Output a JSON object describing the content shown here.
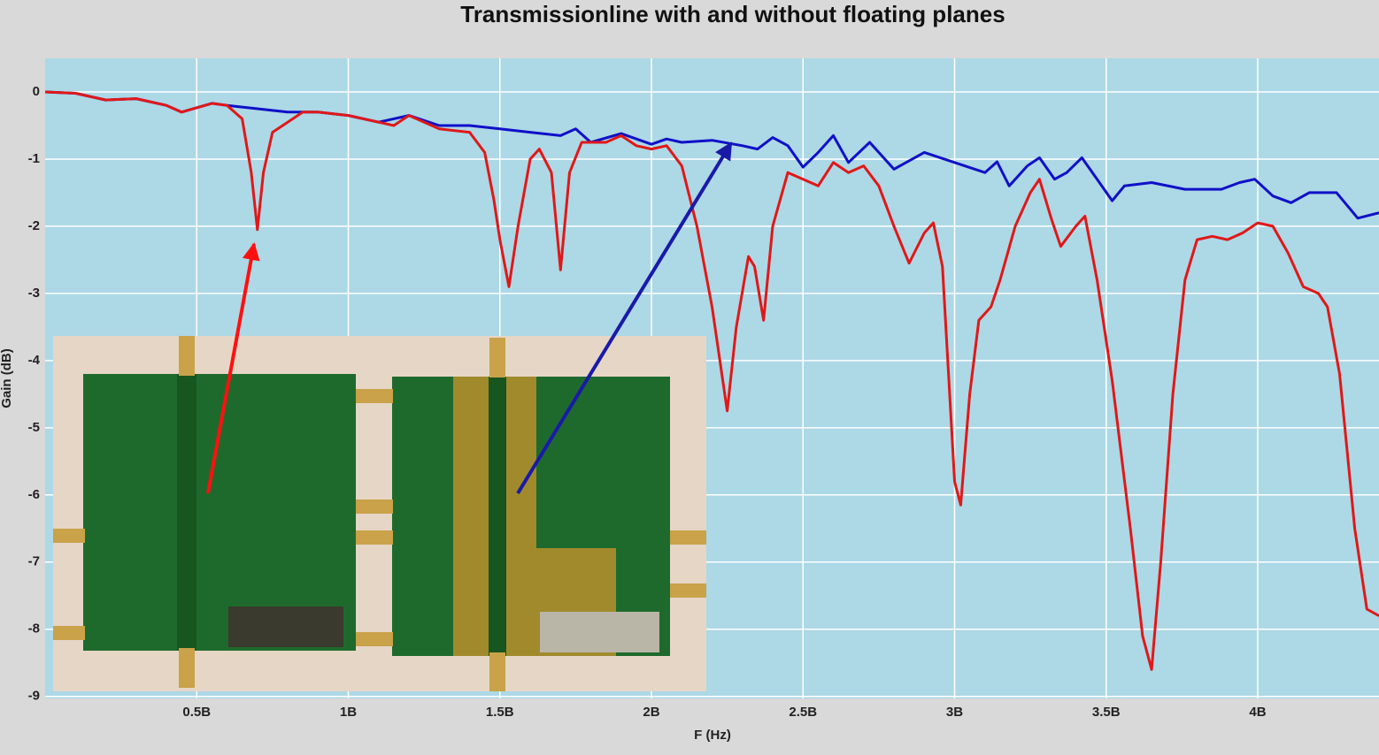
{
  "chart_data": {
    "type": "line",
    "title": "Transmissionline with and without floating planes",
    "xlabel": "F (Hz)",
    "ylabel": "Gain (dB)",
    "xlim": [
      0,
      4400000000.0
    ],
    "ylim": [
      -9.03,
      0.5
    ],
    "xticks": [
      {
        "value": 500000000.0,
        "label": "0.5B"
      },
      {
        "value": 1000000000.0,
        "label": "1B"
      },
      {
        "value": 1500000000.0,
        "label": "1.5B"
      },
      {
        "value": 2000000000.0,
        "label": "2B"
      },
      {
        "value": 2500000000.0,
        "label": "2.5B"
      },
      {
        "value": 3000000000.0,
        "label": "3B"
      },
      {
        "value": 3500000000.0,
        "label": "3.5B"
      },
      {
        "value": 4000000000.0,
        "label": "4B"
      }
    ],
    "yticks": [
      0,
      -1,
      -2,
      -3,
      -4,
      -5,
      -6,
      -7,
      -8,
      -9
    ],
    "grid": true,
    "series": [
      {
        "color": "#1010c8",
        "x": [
          0,
          100000000.0,
          200000000.0,
          300000000.0,
          400000000.0,
          450000000.0,
          550000000.0,
          600000000.0,
          700000000.0,
          800000000.0,
          900000000.0,
          1000000000.0,
          1100000000.0,
          1200000000.0,
          1300000000.0,
          1400000000.0,
          1500000000.0,
          1600000000.0,
          1700000000.0,
          1750000000.0,
          1800000000.0,
          1900000000.0,
          2000000000.0,
          2050000000.0,
          2100000000.0,
          2200000000.0,
          2300000000.0,
          2350000000.0,
          2400000000.0,
          2450000000.0,
          2500000000.0,
          2550000000.0,
          2600000000.0,
          2650000000.0,
          2720000000.0,
          2800000000.0,
          2900000000.0,
          3000000000.0,
          3100000000.0,
          3140000000.0,
          3180000000.0,
          3240000000.0,
          3280000000.0,
          3330000000.0,
          3370000000.0,
          3420000000.0,
          3470000000.0,
          3520000000.0,
          3560000000.0,
          3650000000.0,
          3760000000.0,
          3880000000.0,
          3940000000.0,
          3990000000.0,
          4050000000.0,
          4110000000.0,
          4170000000.0,
          4260000000.0,
          4330000000.0,
          4400000000.0
        ],
        "values": [
          0,
          -0.02,
          -0.12,
          -0.1,
          -0.2,
          -0.3,
          -0.17,
          -0.2,
          -0.25,
          -0.3,
          -0.3,
          -0.35,
          -0.45,
          -0.35,
          -0.5,
          -0.5,
          -0.55,
          -0.6,
          -0.65,
          -0.55,
          -0.75,
          -0.62,
          -0.78,
          -0.7,
          -0.75,
          -0.72,
          -0.8,
          -0.85,
          -0.68,
          -0.8,
          -1.12,
          -0.9,
          -0.65,
          -1.05,
          -0.75,
          -1.15,
          -0.9,
          -1.05,
          -1.2,
          -1.04,
          -1.4,
          -1.1,
          -0.98,
          -1.3,
          -1.2,
          -0.98,
          -1.3,
          -1.62,
          -1.4,
          -1.35,
          -1.45,
          -1.45,
          -1.35,
          -1.3,
          -1.55,
          -1.65,
          -1.5,
          -1.5,
          -1.88,
          -1.8
        ]
      },
      {
        "color": "#e01818",
        "x": [
          0,
          100000000.0,
          200000000.0,
          300000000.0,
          400000000.0,
          450000000.0,
          550000000.0,
          600000000.0,
          650000000.0,
          680000000.0,
          700000000.0,
          720000000.0,
          750000000.0,
          800000000.0,
          850000000.0,
          900000000.0,
          1000000000.0,
          1100000000.0,
          1150000000.0,
          1200000000.0,
          1300000000.0,
          1400000000.0,
          1450000000.0,
          1480000000.0,
          1500000000.0,
          1530000000.0,
          1560000000.0,
          1600000000.0,
          1630000000.0,
          1670000000.0,
          1700000000.0,
          1730000000.0,
          1770000000.0,
          1850000000.0,
          1900000000.0,
          1950000000.0,
          2000000000.0,
          2050000000.0,
          2100000000.0,
          2150000000.0,
          2200000000.0,
          2250000000.0,
          2280000000.0,
          2320000000.0,
          2340000000.0,
          2370000000.0,
          2400000000.0,
          2450000000.0,
          2500000000.0,
          2550000000.0,
          2600000000.0,
          2650000000.0,
          2700000000.0,
          2750000000.0,
          2800000000.0,
          2850000000.0,
          2900000000.0,
          2930000000.0,
          2960000000.0,
          3000000000.0,
          3020000000.0,
          3050000000.0,
          3080000000.0,
          3120000000.0,
          3150000000.0,
          3200000000.0,
          3250000000.0,
          3280000000.0,
          3320000000.0,
          3350000000.0,
          3400000000.0,
          3430000000.0,
          3470000000.0,
          3520000000.0,
          3580000000.0,
          3620000000.0,
          3650000000.0,
          3680000000.0,
          3720000000.0,
          3760000000.0,
          3800000000.0,
          3850000000.0,
          3900000000.0,
          3950000000.0,
          4000000000.0,
          4050000000.0,
          4100000000.0,
          4150000000.0,
          4200000000.0,
          4230000000.0,
          4270000000.0,
          4320000000.0,
          4360000000.0,
          4400000000.0
        ],
        "values": [
          0,
          -0.02,
          -0.12,
          -0.1,
          -0.2,
          -0.3,
          -0.17,
          -0.2,
          -0.4,
          -1.2,
          -2.05,
          -1.2,
          -0.6,
          -0.45,
          -0.3,
          -0.3,
          -0.35,
          -0.45,
          -0.5,
          -0.35,
          -0.55,
          -0.6,
          -0.9,
          -1.6,
          -2.2,
          -2.9,
          -2.0,
          -1.0,
          -0.85,
          -1.2,
          -2.65,
          -1.2,
          -0.75,
          -0.75,
          -0.65,
          -0.8,
          -0.85,
          -0.8,
          -1.1,
          -2.0,
          -3.2,
          -4.75,
          -3.5,
          -2.45,
          -2.6,
          -3.4,
          -2.0,
          -1.2,
          -1.3,
          -1.4,
          -1.05,
          -1.2,
          -1.1,
          -1.4,
          -2.0,
          -2.55,
          -2.1,
          -1.95,
          -2.6,
          -5.8,
          -6.15,
          -4.5,
          -3.4,
          -3.2,
          -2.8,
          -2.0,
          -1.5,
          -1.3,
          -1.9,
          -2.3,
          -2.0,
          -1.85,
          -2.8,
          -4.3,
          -6.5,
          -8.1,
          -8.6,
          -7.0,
          -4.5,
          -2.8,
          -2.2,
          -2.15,
          -2.2,
          -2.1,
          -1.95,
          -2.0,
          -2.4,
          -2.9,
          -3.0,
          -3.2,
          -4.2,
          -6.5,
          -7.7,
          -7.8
        ]
      }
    ]
  }
}
